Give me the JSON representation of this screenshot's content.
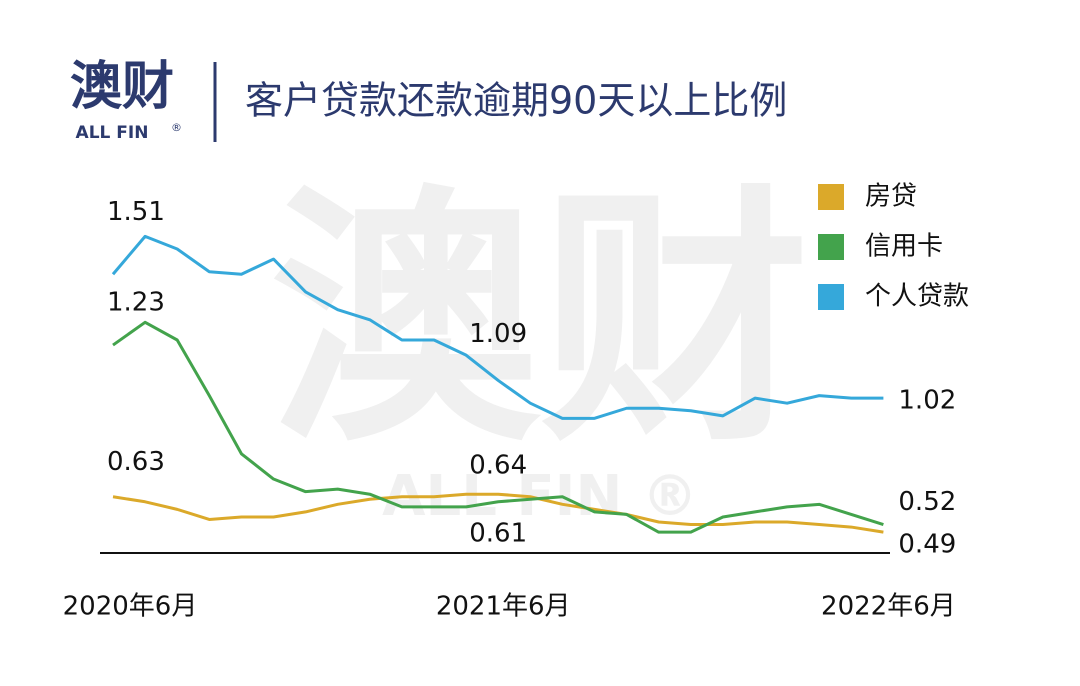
{
  "header": {
    "logo": "澳财",
    "logo_sub": "ALL FIN",
    "logo_mark": "®",
    "title": "客户贷款还款逾期90天以上比例"
  },
  "watermark": {
    "text": "澳财",
    "sub": "ALL FIN ®"
  },
  "chart_data": {
    "type": "line",
    "categories": [
      "2020年6月",
      null,
      null,
      null,
      null,
      null,
      null,
      null,
      null,
      null,
      null,
      null,
      "2021年6月",
      null,
      null,
      null,
      null,
      null,
      null,
      null,
      null,
      null,
      null,
      null,
      "2022年6月"
    ],
    "data_labels": [
      0,
      12,
      24
    ],
    "series": [
      {
        "name": "房贷",
        "color": "#dba92a",
        "values": [
          0.63,
          0.61,
          0.58,
          0.54,
          0.55,
          0.55,
          0.57,
          0.6,
          0.62,
          0.63,
          0.63,
          0.64,
          0.64,
          0.63,
          0.6,
          0.58,
          0.56,
          0.53,
          0.52,
          0.52,
          0.53,
          0.53,
          0.52,
          0.51,
          0.49
        ]
      },
      {
        "name": "信用卡",
        "color": "#43a34c",
        "values": [
          1.23,
          1.32,
          1.25,
          1.03,
          0.8,
          0.7,
          0.65,
          0.66,
          0.64,
          0.59,
          0.59,
          0.59,
          0.61,
          0.62,
          0.63,
          0.57,
          0.56,
          0.49,
          0.49,
          0.55,
          0.57,
          0.59,
          0.6,
          0.56,
          0.52
        ]
      },
      {
        "name": "个人贷款",
        "color": "#35a8da",
        "values": [
          1.51,
          1.66,
          1.61,
          1.52,
          1.51,
          1.57,
          1.44,
          1.37,
          1.33,
          1.25,
          1.25,
          1.19,
          1.09,
          1.0,
          0.94,
          0.94,
          0.98,
          0.98,
          0.97,
          0.95,
          1.02,
          1.0,
          1.03,
          1.02,
          1.02
        ]
      }
    ],
    "legend": "top-right"
  }
}
